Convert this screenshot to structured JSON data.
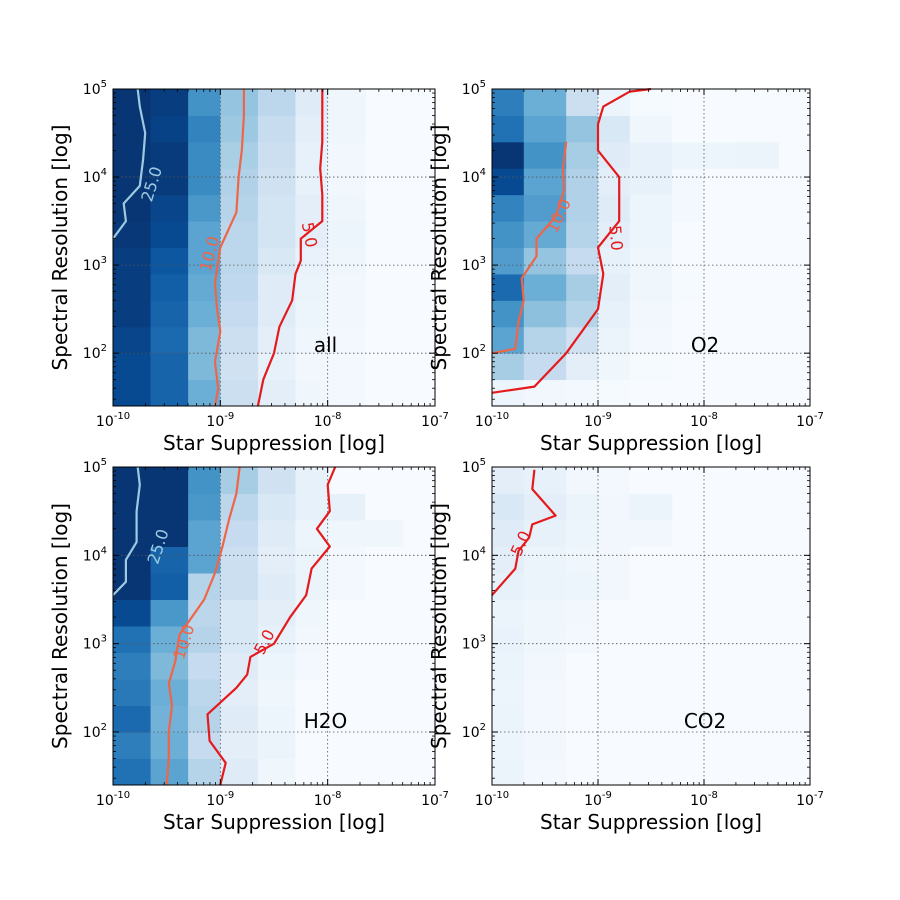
{
  "colors": {
    "cmap": [
      "#f7fbff",
      "#deebf7",
      "#c6dbef",
      "#9ecae1",
      "#6baed6",
      "#4292c6",
      "#2171b5",
      "#08519c",
      "#08306b"
    ],
    "contour_25": "#9ecae1",
    "contour_10": "#ef6548",
    "contour_5": "#e41a1c",
    "grid": "#555555"
  },
  "chart_data": [
    {
      "type": "heatmap",
      "panel_label": "all",
      "xlabel": "Star Suppression [log]",
      "ylabel": "Spectral Resolution [log]",
      "x_ticks": [
        "10^-10",
        "10^-9",
        "10^-8",
        "10^-7"
      ],
      "y_ticks": [
        "10^2",
        "10^3",
        "10^4",
        "10^5"
      ],
      "xlim_log10": [
        -10,
        -7
      ],
      "ylim_log10": [
        1.4,
        5
      ],
      "x_scale": "log",
      "y_scale": "log",
      "grid": true,
      "x_bins_log10": [
        -10,
        -9.65,
        -9.3,
        -9,
        -8.65,
        -8.3,
        -8,
        -7.65
      ],
      "y_bins_log10": [
        1.4,
        1.7,
        2.0,
        2.3,
        2.6,
        2.9,
        3.2,
        3.5,
        3.8,
        4.1,
        4.4,
        4.7,
        5.0
      ],
      "intensity": [
        [
          0.9,
          0.8,
          0.5,
          0.22,
          0.1,
          0.04,
          0.02
        ],
        [
          0.9,
          0.8,
          0.45,
          0.2,
          0.08,
          0.03,
          0.02
        ],
        [
          0.92,
          0.78,
          0.45,
          0.22,
          0.1,
          0.04,
          0.02
        ],
        [
          0.95,
          0.8,
          0.5,
          0.25,
          0.12,
          0.05,
          0.03
        ],
        [
          0.95,
          0.82,
          0.52,
          0.27,
          0.12,
          0.06,
          0.03
        ],
        [
          0.95,
          0.85,
          0.55,
          0.28,
          0.15,
          0.07,
          0.04
        ],
        [
          0.97,
          0.9,
          0.55,
          0.28,
          0.18,
          0.1,
          0.05
        ],
        [
          0.98,
          0.92,
          0.6,
          0.3,
          0.18,
          0.1,
          0.04
        ],
        [
          0.98,
          0.96,
          0.65,
          0.32,
          0.2,
          0.08,
          0.03
        ],
        [
          0.98,
          0.96,
          0.65,
          0.34,
          0.22,
          0.08,
          0.03
        ],
        [
          0.98,
          0.93,
          0.68,
          0.38,
          0.24,
          0.1,
          0.04
        ],
        [
          0.98,
          0.95,
          0.62,
          0.4,
          0.28,
          0.12,
          0.04
        ]
      ],
      "contours": [
        {
          "level": "25.0",
          "points": [
            [
              -10,
              3.3
            ],
            [
              -9.88,
              3.5
            ],
            [
              -9.9,
              3.7
            ],
            [
              -9.75,
              3.9
            ],
            [
              -9.72,
              4.2
            ],
            [
              -9.7,
              4.5
            ],
            [
              -9.75,
              4.8
            ],
            [
              -9.77,
              5.0
            ]
          ]
        },
        {
          "level": "10.0",
          "points": [
            [
              -9.05,
              1.4
            ],
            [
              -9.02,
              1.6
            ],
            [
              -9.05,
              1.9
            ],
            [
              -9.0,
              2.25
            ],
            [
              -9.03,
              2.5
            ],
            [
              -9.05,
              2.8
            ],
            [
              -9.0,
              3.2
            ],
            [
              -8.85,
              3.6
            ],
            [
              -8.83,
              4.0
            ],
            [
              -8.8,
              4.3
            ],
            [
              -8.78,
              4.7
            ],
            [
              -8.78,
              5.0
            ]
          ]
        },
        {
          "level": "5.0",
          "points": [
            [
              -8.65,
              1.4
            ],
            [
              -8.6,
              1.7
            ],
            [
              -8.5,
              2.0
            ],
            [
              -8.45,
              2.3
            ],
            [
              -8.33,
              2.6
            ],
            [
              -8.3,
              2.9
            ],
            [
              -8.25,
              3.05
            ],
            [
              -8.25,
              3.3
            ],
            [
              -8.05,
              3.5
            ],
            [
              -8.05,
              3.8
            ],
            [
              -8.07,
              4.1
            ],
            [
              -8.05,
              4.4
            ],
            [
              -8.05,
              4.7
            ],
            [
              -8.05,
              5.0
            ]
          ]
        }
      ]
    },
    {
      "type": "heatmap",
      "panel_label": "O2",
      "xlabel": "Star Suppression [log]",
      "ylabel": "Spectral Resolution [log]",
      "x_ticks": [
        "10^-10",
        "10^-9",
        "10^-8",
        "10^-7"
      ],
      "y_ticks": [
        "10^2",
        "10^3",
        "10^4",
        "10^5"
      ],
      "xlim_log10": [
        -10,
        -7
      ],
      "ylim_log10": [
        1.4,
        5
      ],
      "x_scale": "log",
      "y_scale": "log",
      "grid": true,
      "x_bins_log10": [
        -10,
        -9.7,
        -9.3,
        -9,
        -8.7,
        -8.3,
        -8,
        -7.7,
        -7.3
      ],
      "y_bins_log10": [
        1.4,
        1.7,
        2.0,
        2.3,
        2.6,
        2.9,
        3.2,
        3.5,
        3.8,
        4.1,
        4.4,
        4.7,
        5.0
      ],
      "intensity": [
        [
          0.05,
          0.03,
          0.02,
          0.01,
          0.0,
          0.0,
          0.0,
          0.0
        ],
        [
          0.35,
          0.25,
          0.1,
          0.04,
          0.01,
          0.0,
          0.0,
          0.0
        ],
        [
          0.55,
          0.3,
          0.2,
          0.06,
          0.02,
          0.0,
          0.0,
          0.0
        ],
        [
          0.62,
          0.42,
          0.3,
          0.08,
          0.03,
          0.0,
          0.0,
          0.0
        ],
        [
          0.78,
          0.5,
          0.35,
          0.1,
          0.04,
          0.01,
          0.0,
          0.0
        ],
        [
          0.58,
          0.4,
          0.25,
          0.08,
          0.04,
          0.0,
          0.0,
          0.0
        ],
        [
          0.62,
          0.52,
          0.3,
          0.1,
          0.05,
          0.0,
          0.0,
          0.0
        ],
        [
          0.68,
          0.58,
          0.32,
          0.12,
          0.05,
          0.02,
          0.0,
          0.0
        ],
        [
          0.9,
          0.55,
          0.32,
          0.1,
          0.08,
          0.02,
          0.0,
          0.0
        ],
        [
          0.98,
          0.62,
          0.35,
          0.12,
          0.08,
          0.05,
          0.05,
          0.06
        ],
        [
          0.75,
          0.55,
          0.4,
          0.15,
          0.04,
          0.0,
          0.0,
          0.0
        ],
        [
          0.7,
          0.5,
          0.22,
          0.05,
          0.01,
          0.0,
          0.0,
          0.0
        ]
      ],
      "contours": [
        {
          "level": "10.0",
          "points": [
            [
              -10,
              2.0
            ],
            [
              -9.78,
              2.05
            ],
            [
              -9.75,
              2.35
            ],
            [
              -9.7,
              2.6
            ],
            [
              -9.72,
              2.85
            ],
            [
              -9.58,
              3.1
            ],
            [
              -9.58,
              3.3
            ],
            [
              -9.4,
              3.55
            ],
            [
              -9.32,
              3.85
            ],
            [
              -9.33,
              4.1
            ],
            [
              -9.3,
              4.4
            ]
          ]
        },
        {
          "level": "5.0",
          "points": [
            [
              -10,
              1.55
            ],
            [
              -9.6,
              1.62
            ],
            [
              -9.3,
              2.0
            ],
            [
              -9.0,
              2.5
            ],
            [
              -8.95,
              2.9
            ],
            [
              -9.0,
              3.2
            ],
            [
              -8.8,
              3.5
            ],
            [
              -8.8,
              3.8
            ],
            [
              -8.8,
              4.0
            ],
            [
              -9.0,
              4.3
            ],
            [
              -9.0,
              4.6
            ],
            [
              -8.95,
              4.8
            ],
            [
              -8.7,
              4.97
            ],
            [
              -8.5,
              5.0
            ]
          ]
        }
      ]
    },
    {
      "type": "heatmap",
      "panel_label": "H2O",
      "xlabel": "Star Suppression [log]",
      "ylabel": "Spectral Resolution [log]",
      "x_ticks": [
        "10^-10",
        "10^-9",
        "10^-8",
        "10^-7"
      ],
      "y_ticks": [
        "10^2",
        "10^3",
        "10^4",
        "10^5"
      ],
      "xlim_log10": [
        -10,
        -7
      ],
      "ylim_log10": [
        1.4,
        5
      ],
      "x_scale": "log",
      "y_scale": "log",
      "grid": true,
      "x_bins_log10": [
        -10,
        -9.65,
        -9.3,
        -9,
        -8.65,
        -8.3,
        -8,
        -7.65,
        -7.3
      ],
      "y_bins_log10": [
        1.4,
        1.7,
        2.0,
        2.3,
        2.6,
        2.9,
        3.2,
        3.5,
        3.8,
        4.1,
        4.4,
        4.7,
        5.0
      ],
      "intensity": [
        [
          0.75,
          0.55,
          0.3,
          0.12,
          0.04,
          0.0,
          0.0,
          0.0
        ],
        [
          0.7,
          0.5,
          0.25,
          0.1,
          0.06,
          0.0,
          0.0,
          0.0
        ],
        [
          0.78,
          0.48,
          0.3,
          0.12,
          0.05,
          0.0,
          0.0,
          0.0
        ],
        [
          0.72,
          0.5,
          0.28,
          0.1,
          0.04,
          0.0,
          0.0,
          0.0
        ],
        [
          0.7,
          0.45,
          0.25,
          0.12,
          0.05,
          0.02,
          0.0,
          0.0
        ],
        [
          0.75,
          0.5,
          0.3,
          0.15,
          0.08,
          0.03,
          0.0,
          0.0
        ],
        [
          0.9,
          0.6,
          0.28,
          0.15,
          0.1,
          0.04,
          0.0,
          0.0
        ],
        [
          0.98,
          0.82,
          0.3,
          0.22,
          0.12,
          0.06,
          0.02,
          0.0
        ],
        [
          0.98,
          0.8,
          0.55,
          0.22,
          0.1,
          0.06,
          0.02,
          0.0
        ],
        [
          0.98,
          0.98,
          0.55,
          0.25,
          0.12,
          0.05,
          0.04,
          0.04
        ],
        [
          0.98,
          0.98,
          0.6,
          0.28,
          0.15,
          0.08,
          0.08,
          0.0
        ],
        [
          0.98,
          0.98,
          0.62,
          0.35,
          0.2,
          0.08,
          0.0,
          0.0
        ]
      ],
      "contours": [
        {
          "level": "25.0",
          "points": [
            [
              -10,
              3.55
            ],
            [
              -9.88,
              3.7
            ],
            [
              -9.88,
              3.95
            ],
            [
              -9.78,
              4.15
            ],
            [
              -9.78,
              4.5
            ],
            [
              -9.75,
              4.8
            ],
            [
              -9.77,
              5.0
            ]
          ]
        },
        {
          "level": "10.0",
          "points": [
            [
              -9.5,
              1.4
            ],
            [
              -9.48,
              1.7
            ],
            [
              -9.48,
              2.0
            ],
            [
              -9.45,
              2.3
            ],
            [
              -9.48,
              2.55
            ],
            [
              -9.42,
              2.8
            ],
            [
              -9.38,
              3.1
            ],
            [
              -9.15,
              3.5
            ],
            [
              -9.05,
              3.8
            ],
            [
              -8.98,
              4.1
            ],
            [
              -8.92,
              4.4
            ],
            [
              -8.85,
              4.7
            ],
            [
              -8.82,
              5.0
            ]
          ]
        },
        {
          "level": "5.0",
          "points": [
            [
              -9.0,
              1.4
            ],
            [
              -8.95,
              1.65
            ],
            [
              -9.1,
              1.9
            ],
            [
              -9.12,
              2.2
            ],
            [
              -8.85,
              2.5
            ],
            [
              -8.75,
              2.65
            ],
            [
              -8.72,
              2.85
            ],
            [
              -8.5,
              3.0
            ],
            [
              -8.35,
              3.3
            ],
            [
              -8.2,
              3.55
            ],
            [
              -8.15,
              3.85
            ],
            [
              -7.98,
              4.1
            ],
            [
              -8.1,
              4.3
            ],
            [
              -7.98,
              4.5
            ],
            [
              -8.0,
              4.8
            ],
            [
              -7.93,
              5.0
            ]
          ]
        }
      ]
    },
    {
      "type": "heatmap",
      "panel_label": "CO2",
      "xlabel": "Star Suppression [log]",
      "ylabel": "Spectral Resolution [log]",
      "x_ticks": [
        "10^-10",
        "10^-9",
        "10^-8",
        "10^-7"
      ],
      "y_ticks": [
        "10^2",
        "10^3",
        "10^4",
        "10^5"
      ],
      "xlim_log10": [
        -10,
        -7
      ],
      "ylim_log10": [
        1.4,
        5
      ],
      "x_scale": "log",
      "y_scale": "log",
      "grid": true,
      "x_bins_log10": [
        -10,
        -9.7,
        -9.3,
        -9,
        -8.7,
        -8.3,
        -8,
        -7.7,
        -7.3
      ],
      "y_bins_log10": [
        1.4,
        1.7,
        2.0,
        2.3,
        2.6,
        2.9,
        3.2,
        3.5,
        3.8,
        4.1,
        4.4,
        4.7,
        5.0
      ],
      "intensity": [
        [
          0.06,
          0.02,
          0.0,
          0.0,
          0.0,
          0.0,
          0.0,
          0.0
        ],
        [
          0.05,
          0.03,
          0.0,
          0.0,
          0.0,
          0.0,
          0.0,
          0.0
        ],
        [
          0.06,
          0.02,
          0.0,
          0.0,
          0.0,
          0.0,
          0.0,
          0.0
        ],
        [
          0.05,
          0.02,
          0.0,
          0.0,
          0.0,
          0.0,
          0.0,
          0.0
        ],
        [
          0.06,
          0.03,
          0.0,
          0.0,
          0.0,
          0.0,
          0.0,
          0.0
        ],
        [
          0.07,
          0.04,
          0.02,
          0.0,
          0.0,
          0.0,
          0.0,
          0.0
        ],
        [
          0.06,
          0.04,
          0.03,
          0.0,
          0.0,
          0.0,
          0.0,
          0.0
        ],
        [
          0.08,
          0.06,
          0.05,
          0.03,
          0.0,
          0.0,
          0.0,
          0.0
        ],
        [
          0.1,
          0.06,
          0.04,
          0.03,
          0.0,
          0.0,
          0.0,
          0.0
        ],
        [
          0.12,
          0.08,
          0.05,
          0.03,
          0.03,
          0.0,
          0.0,
          0.0
        ],
        [
          0.15,
          0.1,
          0.06,
          0.03,
          0.06,
          0.0,
          0.0,
          0.0
        ],
        [
          0.1,
          0.08,
          0.03,
          0.02,
          0.0,
          0.0,
          0.0,
          0.0
        ]
      ],
      "contours": [
        {
          "level": "5.0",
          "points": [
            [
              -10,
              3.55
            ],
            [
              -9.78,
              3.85
            ],
            [
              -9.75,
              4.05
            ],
            [
              -9.65,
              4.2
            ],
            [
              -9.62,
              4.35
            ],
            [
              -9.4,
              4.45
            ],
            [
              -9.62,
              4.75
            ],
            [
              -9.6,
              4.97
            ]
          ]
        }
      ]
    }
  ]
}
